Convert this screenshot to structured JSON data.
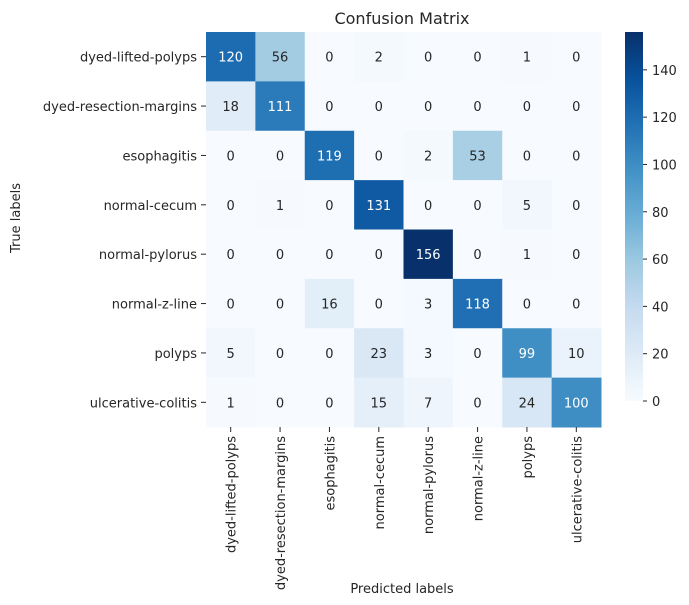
{
  "chart_data": {
    "type": "heatmap",
    "title": "Confusion Matrix",
    "xlabel": "Predicted labels",
    "ylabel": "True labels",
    "rows": [
      "dyed-lifted-polyps",
      "dyed-resection-margins",
      "esophagitis",
      "normal-cecum",
      "normal-pylorus",
      "normal-z-line",
      "polyps",
      "ulcerative-colitis"
    ],
    "columns": [
      "dyed-lifted-polyps",
      "dyed-resection-margins",
      "esophagitis",
      "normal-cecum",
      "normal-pylorus",
      "normal-z-line",
      "polyps",
      "ulcerative-colitis"
    ],
    "values": [
      [
        120,
        56,
        0,
        2,
        0,
        0,
        1,
        0
      ],
      [
        18,
        111,
        0,
        0,
        0,
        0,
        0,
        0
      ],
      [
        0,
        0,
        119,
        0,
        2,
        53,
        0,
        0
      ],
      [
        0,
        1,
        0,
        131,
        0,
        0,
        5,
        0
      ],
      [
        0,
        0,
        0,
        0,
        156,
        0,
        1,
        0
      ],
      [
        0,
        0,
        16,
        0,
        3,
        118,
        0,
        0
      ],
      [
        5,
        0,
        0,
        23,
        3,
        0,
        99,
        10
      ],
      [
        1,
        0,
        0,
        15,
        7,
        0,
        24,
        100
      ]
    ],
    "colorbar": {
      "colormap": "Blues",
      "range": [
        0,
        156
      ],
      "ticks": [
        "0",
        "20",
        "40",
        "60",
        "80",
        "100",
        "120",
        "140"
      ]
    }
  }
}
